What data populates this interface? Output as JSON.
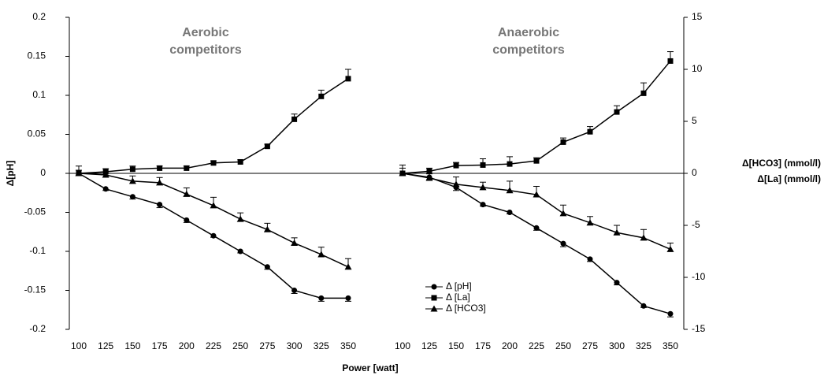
{
  "chart_data": {
    "type": "line",
    "x_label": "Power [watt]",
    "y_label": "Δ[pH]",
    "y2_label_lines": [
      "Δ[HCO3] (mmol/l)",
      "Δ[La] (mmol/l)"
    ],
    "ylim": [
      -0.2,
      0.2
    ],
    "yticks": [
      0.2,
      0.15,
      0.1,
      0.05,
      0,
      -0.05,
      -0.1,
      -0.15,
      -0.2
    ],
    "y2lim": [
      -15,
      15
    ],
    "y2ticks": [
      15,
      10,
      5,
      0,
      -5,
      -10,
      -15
    ],
    "xlim": [
      100,
      350
    ],
    "color": "#000000",
    "series": [
      {
        "name": "Δ [pH]",
        "marker": "circle",
        "error_side": "lower"
      },
      {
        "name": "Δ [La]",
        "marker": "square",
        "axis": "y2",
        "error_side": "upper"
      },
      {
        "name": "Δ [HCO3]",
        "marker": "triangle",
        "axis": "y2",
        "error_side": "upper"
      }
    ],
    "panels": [
      {
        "title_lines": [
          "Aerobic",
          "competitors"
        ],
        "x": [
          100,
          125,
          150,
          175,
          200,
          225,
          250,
          275,
          300,
          325,
          350
        ],
        "series": [
          {
            "values": [
              0,
              -0.02,
              -0.03,
              -0.04,
              -0.06,
              -0.08,
              -0.1,
              -0.12,
              -0.15,
              -0.16,
              -0.16
            ],
            "errors": [
              0.002,
              0.002,
              0.003,
              0.004,
              0.003,
              0.002,
              0.002,
              0.003,
              0.004,
              0.004,
              0.004
            ]
          },
          {
            "values": [
              0,
              0.15,
              0.4,
              0.5,
              0.5,
              1.0,
              1.1,
              2.6,
              5.2,
              7.4,
              9.1
            ],
            "errors": [
              0.7,
              0.3,
              0.3,
              0.2,
              0.2,
              0.2,
              0.2,
              0.2,
              0.5,
              0.6,
              0.9
            ]
          },
          {
            "values": [
              0,
              -0.15,
              -0.75,
              -0.9,
              -2.0,
              -3.1,
              -4.4,
              -5.4,
              -6.7,
              -7.8,
              -9.0
            ],
            "errors": [
              0.3,
              0.3,
              0.5,
              0.5,
              0.6,
              0.8,
              0.6,
              0.6,
              0.5,
              0.7,
              0.8
            ]
          }
        ]
      },
      {
        "title_lines": [
          "Anaerobic",
          "competitors"
        ],
        "x": [
          100,
          125,
          150,
          175,
          200,
          225,
          250,
          275,
          300,
          325,
          350
        ],
        "series": [
          {
            "values": [
              0,
              -0.005,
              -0.018,
              -0.04,
              -0.05,
              -0.07,
              -0.09,
              -0.11,
              -0.14,
              -0.17,
              -0.18
            ],
            "errors": [
              0.002,
              0.003,
              0.004,
              0.002,
              0.002,
              0.003,
              0.004,
              0.003,
              0.003,
              0.002,
              0.004
            ]
          },
          {
            "values": [
              0,
              0.2,
              0.75,
              0.8,
              0.9,
              1.2,
              3.0,
              4.0,
              5.9,
              7.7,
              10.8
            ],
            "errors": [
              0.8,
              0.3,
              0.3,
              0.6,
              0.7,
              0.3,
              0.4,
              0.5,
              0.6,
              1.0,
              0.9
            ]
          },
          {
            "values": [
              0,
              -0.45,
              -1.05,
              -1.35,
              -1.65,
              -2.05,
              -3.85,
              -4.75,
              -5.7,
              -6.2,
              -7.3
            ],
            "errors": [
              0.5,
              0.4,
              0.7,
              0.5,
              0.9,
              0.8,
              0.8,
              0.6,
              0.7,
              0.8,
              0.6
            ]
          }
        ]
      }
    ]
  }
}
